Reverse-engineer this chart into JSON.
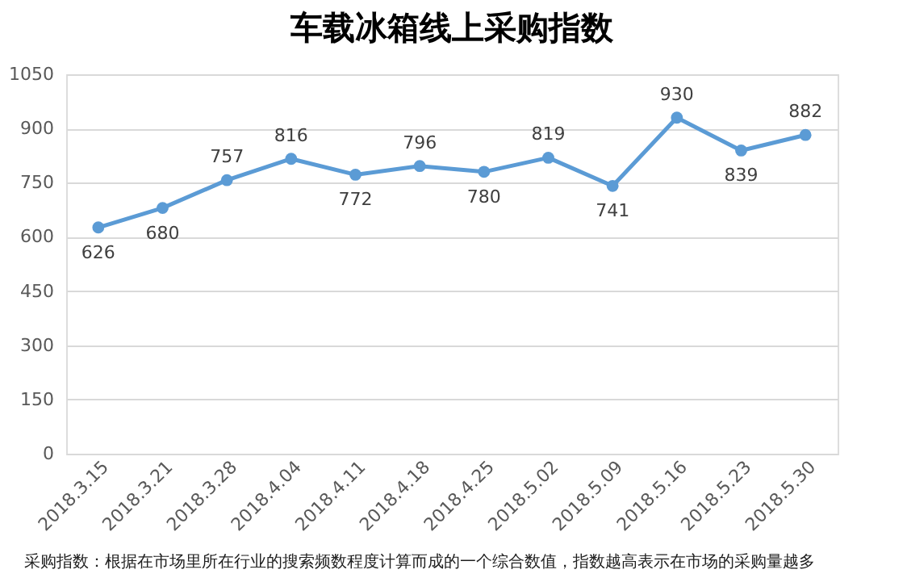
{
  "chart_data": {
    "type": "line",
    "title": "车载冰箱线上采购指数",
    "categories": [
      "2018.3.15",
      "2018.3.21",
      "2018.3.28",
      "2018.4.04",
      "2018.4.11",
      "2018.4.18",
      "2018.4.25",
      "2018.5.02",
      "2018.5.09",
      "2018.5.16",
      "2018.5.23",
      "2018.5.30"
    ],
    "series": [
      {
        "color": "#5b9bd5",
        "values": [
          626,
          680,
          757,
          816,
          772,
          796,
          780,
          819,
          741,
          930,
          839,
          882
        ]
      }
    ],
    "ylim": [
      0,
      1050
    ],
    "yticks": [
      0,
      150,
      300,
      450,
      600,
      750,
      900,
      1050
    ],
    "grid": "y",
    "marker": "circle",
    "data_labels": true,
    "annotations": [
      "采购指数：根据在市场里所在行业的搜索频数程度计算而成的一个综合数值，指数越高表示在市场的采购量越多"
    ]
  }
}
